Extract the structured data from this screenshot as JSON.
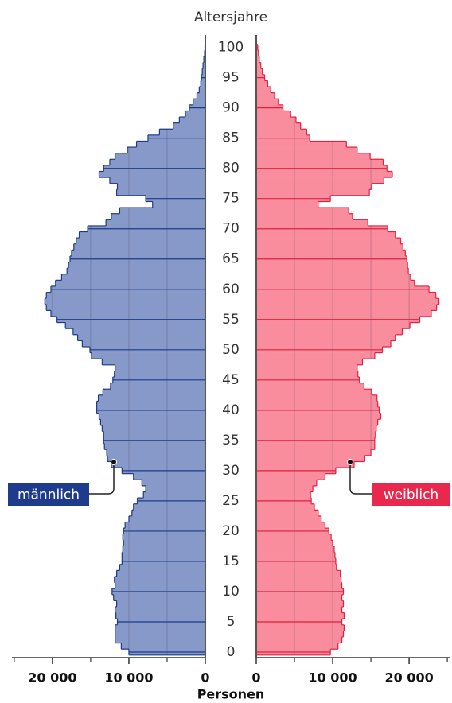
{
  "chart_data": {
    "type": "population_pyramid",
    "y_axis_label": "Altersjahre",
    "x_axis_label": "Personen",
    "ages": [
      0,
      1,
      2,
      3,
      4,
      5,
      6,
      7,
      8,
      9,
      10,
      11,
      12,
      13,
      14,
      15,
      16,
      17,
      18,
      19,
      20,
      21,
      22,
      23,
      24,
      25,
      26,
      27,
      28,
      29,
      30,
      31,
      32,
      33,
      34,
      35,
      36,
      37,
      38,
      39,
      40,
      41,
      42,
      43,
      44,
      45,
      46,
      47,
      48,
      49,
      50,
      51,
      52,
      53,
      54,
      55,
      56,
      57,
      58,
      59,
      60,
      61,
      62,
      63,
      64,
      65,
      66,
      67,
      68,
      69,
      70,
      71,
      72,
      73,
      74,
      75,
      76,
      77,
      78,
      79,
      80,
      81,
      82,
      83,
      84,
      85,
      86,
      87,
      88,
      89,
      90,
      91,
      92,
      93,
      94,
      95,
      96,
      97,
      98,
      99,
      100
    ],
    "ylim": [
      -0.5,
      100.5
    ],
    "yticks": [
      0,
      5,
      10,
      15,
      20,
      25,
      30,
      35,
      40,
      45,
      50,
      55,
      60,
      65,
      70,
      75,
      80,
      85,
      90,
      95,
      100
    ],
    "xlim": [
      0,
      25300
    ],
    "xticks": [
      0,
      {
        "value": 10000,
        "label": "10 000"
      },
      {
        "value": 20000,
        "label": "20 000"
      }
    ],
    "xminor": [
      5000,
      15000,
      25000
    ],
    "series": [
      {
        "name": "männlich",
        "side": "left",
        "color": "#8799c9",
        "line_color": "#1d3a86",
        "label_color": "#1f3c8c",
        "values": [
          10000,
          11000,
          11800,
          11800,
          11800,
          11500,
          11700,
          11800,
          11600,
          12000,
          12200,
          11800,
          11900,
          11600,
          11200,
          10900,
          10900,
          10800,
          10700,
          10800,
          10700,
          10500,
          10000,
          9600,
          9400,
          8900,
          8100,
          7800,
          8300,
          9400,
          10900,
          12300,
          12800,
          12900,
          13200,
          13300,
          13300,
          13500,
          13700,
          13900,
          14200,
          14200,
          14000,
          13400,
          12400,
          12100,
          11900,
          11800,
          13500,
          14900,
          15100,
          16100,
          16700,
          17300,
          18300,
          19400,
          20200,
          20800,
          21000,
          20800,
          20200,
          19600,
          18800,
          18100,
          17900,
          17700,
          17500,
          17200,
          16900,
          16500,
          15400,
          13000,
          12300,
          11200,
          6900,
          7800,
          11600,
          11500,
          12500,
          13900,
          13300,
          12500,
          11800,
          10200,
          9000,
          7500,
          6000,
          4200,
          3400,
          2600,
          2100,
          1600,
          1100,
          800,
          600,
          500,
          400,
          300,
          200,
          100,
          50
        ]
      },
      {
        "name": "weiblich",
        "side": "right",
        "color": "#f98d9e",
        "line_color": "#e0203f",
        "label_color": "#e8294d",
        "values": [
          9700,
          10700,
          11200,
          11400,
          11500,
          11200,
          11500,
          11200,
          11400,
          11200,
          11400,
          11200,
          11100,
          11000,
          10500,
          10400,
          10300,
          10200,
          10000,
          9800,
          9500,
          9000,
          8500,
          8100,
          7600,
          7200,
          7100,
          7400,
          7900,
          9000,
          10400,
          12800,
          14200,
          15000,
          15500,
          15500,
          15600,
          15700,
          15900,
          16300,
          16100,
          15900,
          15800,
          15100,
          14100,
          13500,
          13300,
          13200,
          13900,
          15500,
          16500,
          17600,
          18200,
          19100,
          20100,
          21400,
          22900,
          23600,
          23900,
          23500,
          22600,
          20700,
          20200,
          19900,
          19800,
          19700,
          19500,
          19200,
          18900,
          18200,
          17200,
          14600,
          12600,
          12100,
          8100,
          9700,
          14800,
          15100,
          16700,
          17800,
          17100,
          16600,
          14900,
          13200,
          11800,
          7000,
          6600,
          5800,
          5200,
          4500,
          3500,
          2900,
          2400,
          1900,
          1500,
          1100,
          800,
          600,
          400,
          300,
          200
        ]
      }
    ]
  }
}
